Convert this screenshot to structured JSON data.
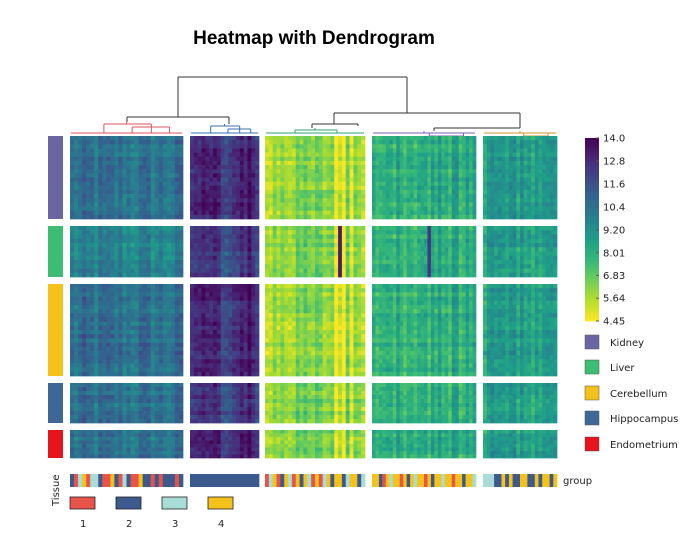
{
  "chart_data": {
    "type": "heatmap",
    "title": "Heatmap with Dendrogram",
    "colorbar": {
      "min": 4.45,
      "max": 14.0,
      "tick_labels": [
        "14.0",
        "12.8",
        "11.6",
        "10.4",
        "9.20",
        "8.01",
        "6.83",
        "5.64",
        "4.45"
      ],
      "tick_values": [
        14.0,
        12.8,
        11.6,
        10.4,
        9.2,
        8.01,
        6.83,
        5.64,
        4.45
      ],
      "palette": [
        "#fde725",
        "#b5de2b",
        "#6ece58",
        "#35b779",
        "#1f9e89",
        "#26828e",
        "#31688e",
        "#3e4989",
        "#482878",
        "#440154"
      ]
    },
    "row_groups": [
      {
        "label": "Kidney",
        "color": "#6a66a3",
        "rows": 20
      },
      {
        "label": "Liver",
        "color": "#3dbd74",
        "rows": 12
      },
      {
        "label": "Cerebellum",
        "color": "#f5c21b",
        "rows": 22
      },
      {
        "label": "Hippocampus",
        "color": "#3c6796",
        "rows": 10
      },
      {
        "label": "Endometrium",
        "color": "#e8141b",
        "rows": 8
      }
    ],
    "column_clusters": [
      {
        "id": 1,
        "columns": 28,
        "dendro_color": "#d9545c",
        "mean_level": {
          "Kidney": 10.3,
          "Liver": 9.5,
          "Cerebellum": 10.4,
          "Hippocampus": 10.3,
          "Endometrium": 10.2
        }
      },
      {
        "id": 2,
        "columns": 18,
        "dendro_color": "#3a6fb0",
        "mean_level": {
          "Kidney": 12.6,
          "Liver": 12.0,
          "Cerebellum": 12.7,
          "Hippocampus": 12.2,
          "Endometrium": 12.6
        }
      },
      {
        "id": 3,
        "columns": 26,
        "dendro_color": "#2ba36a",
        "mean_level": {
          "Kidney": 6.0,
          "Liver": 6.2,
          "Cerebellum": 5.9,
          "Hippocampus": 6.3,
          "Endometrium": 6.3
        }
      },
      {
        "id": 4,
        "columns": 30,
        "dendro_color": "#7a5fb5",
        "mean_level": {
          "Kidney": 8.1,
          "Liver": 8.0,
          "Cerebellum": 8.1,
          "Hippocampus": 8.0,
          "Endometrium": 8.1
        }
      },
      {
        "id": 5,
        "columns": 20,
        "dendro_color": "#c9962e",
        "mean_level": {
          "Kidney": 8.7,
          "Liver": 8.5,
          "Cerebellum": 8.6,
          "Hippocampus": 8.5,
          "Endometrium": 8.6
        }
      }
    ],
    "column_annotation": {
      "name": "group",
      "categories": [
        {
          "label": "1",
          "color": "#e8544a"
        },
        {
          "label": "2",
          "color": "#3d5a8f"
        },
        {
          "label": "3",
          "color": "#a8dcd6"
        },
        {
          "label": "4",
          "color": "#f5c21b"
        }
      ],
      "side_label": "Tissue"
    }
  }
}
